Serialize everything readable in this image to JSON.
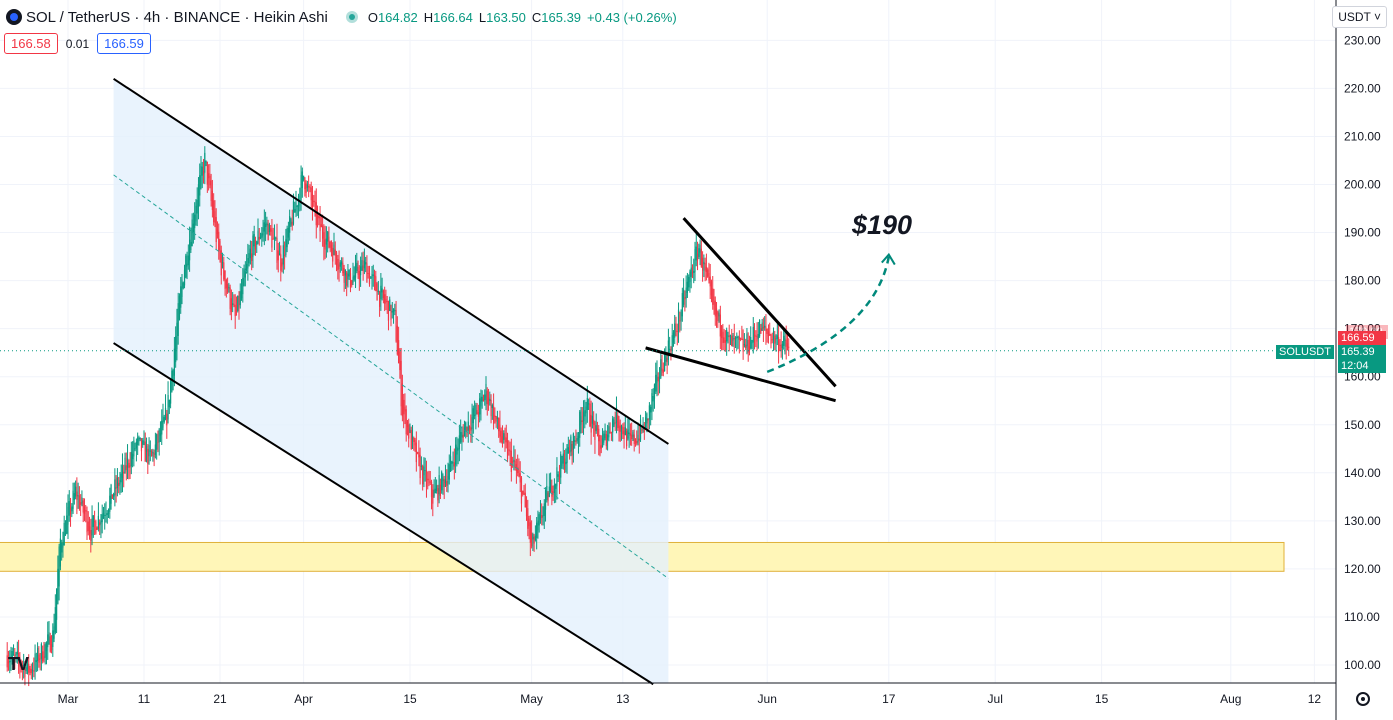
{
  "header": {
    "symbol": "SOL / TetherUS",
    "interval": "4h",
    "exchange": "BINANCE",
    "chart_style": "Heikin Ashi",
    "open_label": "O",
    "open": "164.82",
    "high_label": "H",
    "high": "166.64",
    "low_label": "L",
    "low": "163.50",
    "close_label": "C",
    "close": "165.39",
    "change": "+0.43 (+0.26%)"
  },
  "bid": "166.58",
  "spread": "0.01",
  "ask": "166.59",
  "currency": "USDT ˅",
  "target_label": "$190",
  "price_tags": {
    "symbol_label": "SOLUSDT",
    "ask_price": "166.59",
    "last_price": "165.39",
    "countdown": "12:04",
    "partial_price": "170.00"
  },
  "colors": {
    "up": "#089981",
    "down": "#f23645",
    "channel_fill": "#e3f0fc",
    "zone_fill": "#fff6b8",
    "zone_border": "#e0b13a",
    "midline": "#26a69a",
    "projection": "#00897b",
    "lines": "#000000"
  },
  "chart_data": {
    "type": "candlestick",
    "title": "SOL / TetherUS · 4h · BINANCE · Heikin Ashi",
    "xlabel": "",
    "ylabel": "",
    "x_ticks": [
      "Mar",
      "11",
      "21",
      "Apr",
      "15",
      "May",
      "13",
      "Jun",
      "17",
      "Jul",
      "15",
      "Aug",
      "12"
    ],
    "x_tick_dates": [
      "2024-03-01",
      "2024-03-11",
      "2024-03-21",
      "2024-04-01",
      "2024-04-15",
      "2024-05-01",
      "2024-05-13",
      "2024-06-01",
      "2024-06-17",
      "2024-07-01",
      "2024-07-15",
      "2024-08-01",
      "2024-08-12"
    ],
    "y_ticks": [
      100,
      110,
      120,
      130,
      140,
      150,
      160,
      170,
      180,
      190,
      200,
      210,
      220,
      230
    ],
    "ylim": [
      98,
      233
    ],
    "grid": true,
    "y_axis_position": "right",
    "last_price": 165.39,
    "price_path": [
      [
        "2024-02-22",
        102
      ],
      [
        "2024-02-25",
        99
      ],
      [
        "2024-02-28",
        106
      ],
      [
        "2024-02-29",
        126
      ],
      [
        "2024-03-02",
        136
      ],
      [
        "2024-03-04",
        128
      ],
      [
        "2024-03-06",
        133
      ],
      [
        "2024-03-08",
        139
      ],
      [
        "2024-03-10",
        146
      ],
      [
        "2024-03-12",
        143
      ],
      [
        "2024-03-14",
        152
      ],
      [
        "2024-03-16",
        180
      ],
      [
        "2024-03-18",
        198
      ],
      [
        "2024-03-19",
        205
      ],
      [
        "2024-03-21",
        184
      ],
      [
        "2024-03-23",
        172
      ],
      [
        "2024-03-25",
        186
      ],
      [
        "2024-03-27",
        192
      ],
      [
        "2024-03-29",
        184
      ],
      [
        "2024-03-31",
        196
      ],
      [
        "2024-04-01",
        202
      ],
      [
        "2024-04-03",
        191
      ],
      [
        "2024-04-05",
        186
      ],
      [
        "2024-04-07",
        180
      ],
      [
        "2024-04-09",
        183
      ],
      [
        "2024-04-11",
        177
      ],
      [
        "2024-04-13",
        172
      ],
      [
        "2024-04-14",
        153
      ],
      [
        "2024-04-16",
        142
      ],
      [
        "2024-04-18",
        135
      ],
      [
        "2024-04-20",
        140
      ],
      [
        "2024-04-22",
        149
      ],
      [
        "2024-04-24",
        153
      ],
      [
        "2024-04-25",
        157
      ],
      [
        "2024-04-27",
        147
      ],
      [
        "2024-04-29",
        140
      ],
      [
        "2024-04-30",
        134
      ],
      [
        "2024-05-01",
        124
      ],
      [
        "2024-05-03",
        135
      ],
      [
        "2024-05-05",
        142
      ],
      [
        "2024-05-07",
        148
      ],
      [
        "2024-05-08",
        155
      ],
      [
        "2024-05-10",
        145
      ],
      [
        "2024-05-12",
        152
      ],
      [
        "2024-05-14",
        146
      ],
      [
        "2024-05-16",
        150
      ],
      [
        "2024-05-18",
        162
      ],
      [
        "2024-05-20",
        170
      ],
      [
        "2024-05-22",
        182
      ],
      [
        "2024-05-23",
        187
      ],
      [
        "2024-05-25",
        173
      ],
      [
        "2024-05-27",
        167
      ],
      [
        "2024-05-29",
        166
      ],
      [
        "2024-05-31",
        170
      ],
      [
        "2024-06-02",
        168
      ],
      [
        "2024-06-04",
        165.39
      ]
    ],
    "annotations": [
      {
        "type": "descending_channel_upper",
        "points": [
          [
            "2024-03-07",
            222
          ],
          [
            "2024-05-19",
            146
          ]
        ]
      },
      {
        "type": "descending_channel_lower",
        "points": [
          [
            "2024-03-07",
            167
          ],
          [
            "2024-05-17",
            96
          ]
        ]
      },
      {
        "type": "channel_midline",
        "points": [
          [
            "2024-03-07",
            202
          ],
          [
            "2024-05-19",
            118
          ]
        ]
      },
      {
        "type": "falling_wedge_upper",
        "points": [
          [
            "2024-05-21",
            193
          ],
          [
            "2024-06-10",
            158
          ]
        ]
      },
      {
        "type": "falling_wedge_lower",
        "points": [
          [
            "2024-05-16",
            166
          ],
          [
            "2024-06-10",
            155
          ]
        ]
      },
      {
        "type": "support_zone",
        "x_range": [
          "2024-02-20",
          "2024-08-08"
        ],
        "y_range": [
          119.5,
          125.5
        ]
      },
      {
        "type": "projection_arrow",
        "points": [
          [
            "2024-06-01",
            161
          ],
          [
            "2024-06-10",
            170
          ],
          [
            "2024-06-17",
            185
          ]
        ]
      },
      {
        "type": "target_label",
        "text": "$190",
        "at": [
          "2024-06-10",
          190
        ]
      }
    ]
  }
}
